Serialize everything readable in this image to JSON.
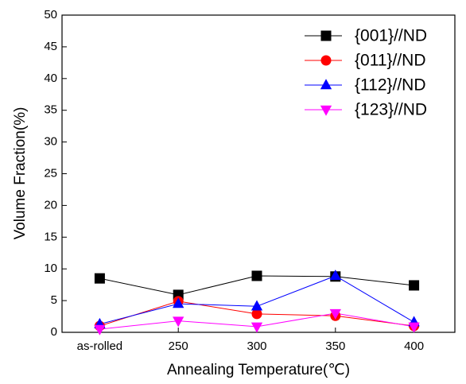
{
  "chart_data": {
    "type": "line",
    "x_label": "Annealing Temperature(℃)",
    "y_label": "Volume Fraction(%)",
    "categories": [
      "as-rolled",
      "250",
      "300",
      "350",
      "400"
    ],
    "ylim": [
      0,
      50
    ],
    "yticks": [
      0,
      5,
      10,
      15,
      20,
      25,
      30,
      35,
      40,
      45,
      50
    ],
    "legend": "upper right",
    "series": [
      {
        "name": "{001}//ND",
        "color": "#000000",
        "marker": "square",
        "values": [
          8.5,
          5.9,
          8.9,
          8.8,
          7.4
        ]
      },
      {
        "name": "{011}//ND",
        "color": "#ff0000",
        "marker": "circle",
        "values": [
          1.0,
          4.9,
          2.9,
          2.6,
          1.0
        ]
      },
      {
        "name": "{112}//ND",
        "color": "#0000ff",
        "marker": "triangle-up",
        "values": [
          1.3,
          4.5,
          4.1,
          8.9,
          1.6
        ]
      },
      {
        "name": "{123}//ND",
        "color": "#ff00ff",
        "marker": "triangle-down",
        "values": [
          0.5,
          1.8,
          0.9,
          3.0,
          0.9
        ]
      }
    ]
  }
}
